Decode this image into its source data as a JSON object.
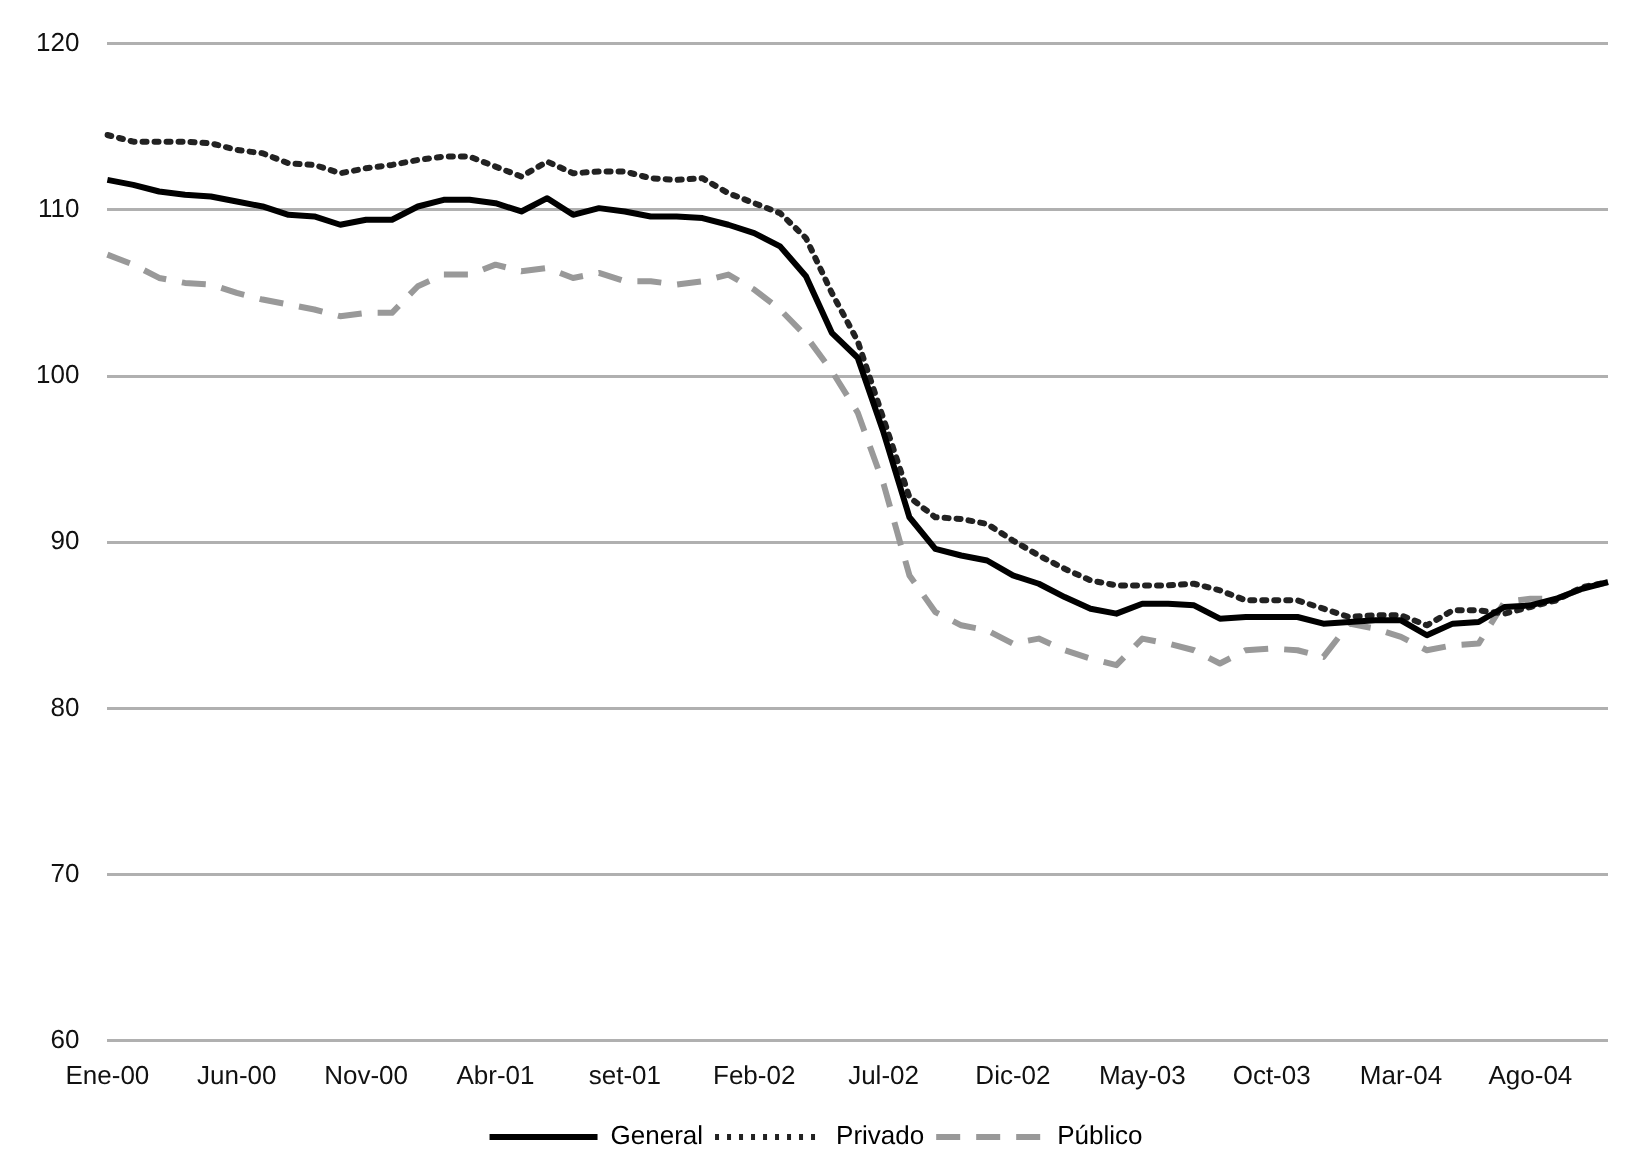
{
  "chart_data": {
    "type": "line",
    "categories": [
      "Ene-00",
      null,
      null,
      null,
      null,
      "Jun-00",
      null,
      null,
      null,
      null,
      "Nov-00",
      null,
      null,
      null,
      null,
      "Abr-01",
      null,
      null,
      null,
      null,
      "set-01",
      null,
      null,
      null,
      null,
      "Feb-02",
      null,
      null,
      null,
      null,
      "Jul-02",
      null,
      null,
      null,
      null,
      "Dic-02",
      null,
      null,
      null,
      null,
      "May-03",
      null,
      null,
      null,
      null,
      "Oct-03",
      null,
      null,
      null,
      null,
      "Mar-04",
      null,
      null,
      null,
      null,
      "Ago-04",
      null,
      null,
      null
    ],
    "series": [
      {
        "name": "General",
        "color": "#000000",
        "line_style": "solid",
        "values": [
          111.8,
          111.5,
          111.1,
          110.9,
          110.8,
          110.5,
          110.2,
          109.7,
          109.6,
          109.1,
          109.4,
          109.4,
          110.2,
          110.6,
          110.6,
          110.4,
          109.9,
          110.7,
          109.7,
          110.1,
          109.9,
          109.6,
          109.6,
          109.5,
          109.1,
          108.6,
          107.8,
          106.0,
          102.6,
          101.1,
          96.6,
          91.5,
          89.6,
          89.2,
          88.9,
          88.0,
          87.5,
          86.7,
          86.0,
          85.7,
          86.3,
          86.3,
          86.2,
          85.4,
          85.5,
          85.5,
          85.5,
          85.1,
          85.2,
          85.3,
          85.3,
          84.4,
          85.1,
          85.2,
          86.1,
          86.2,
          86.6,
          87.2,
          87.6
        ]
      },
      {
        "name": "Privado",
        "color": "#222222",
        "line_style": "dotted",
        "values": [
          114.5,
          114.1,
          114.1,
          114.1,
          114.0,
          113.6,
          113.4,
          112.8,
          112.7,
          112.2,
          112.5,
          112.7,
          113.0,
          113.2,
          113.2,
          112.6,
          112.0,
          112.9,
          112.2,
          112.3,
          112.3,
          111.9,
          111.8,
          111.9,
          111.0,
          110.4,
          109.8,
          108.3,
          105.0,
          102.1,
          97.4,
          92.7,
          91.5,
          91.4,
          91.1,
          90.1,
          89.2,
          88.4,
          87.7,
          87.4,
          87.4,
          87.4,
          87.5,
          87.1,
          86.5,
          86.5,
          86.5,
          86.0,
          85.5,
          85.6,
          85.6,
          85.0,
          85.9,
          85.9,
          85.7,
          86.1,
          86.5,
          87.3,
          87.6
        ]
      },
      {
        "name": "Público",
        "color": "#999999",
        "line_style": "dashed",
        "values": [
          107.3,
          106.7,
          105.9,
          105.6,
          105.5,
          105.0,
          104.6,
          104.3,
          104.0,
          103.6,
          103.8,
          103.8,
          105.4,
          106.1,
          106.1,
          106.7,
          106.3,
          106.5,
          105.9,
          106.2,
          105.7,
          105.7,
          105.5,
          105.7,
          106.1,
          105.2,
          104.0,
          102.4,
          100.3,
          97.8,
          93.5,
          88.0,
          85.8,
          85.0,
          84.7,
          83.9,
          84.2,
          83.5,
          83.0,
          82.6,
          84.2,
          83.9,
          83.5,
          82.7,
          83.5,
          83.6,
          83.5,
          83.1,
          85.1,
          84.8,
          84.3,
          83.5,
          83.8,
          83.9,
          86.4,
          86.6,
          86.6,
          87.2,
          87.6
        ]
      }
    ],
    "ylim": [
      60,
      120
    ],
    "yticks": [
      60,
      70,
      80,
      90,
      100,
      110,
      120
    ],
    "grid": "y",
    "legend": "bottom",
    "marker": "none"
  }
}
